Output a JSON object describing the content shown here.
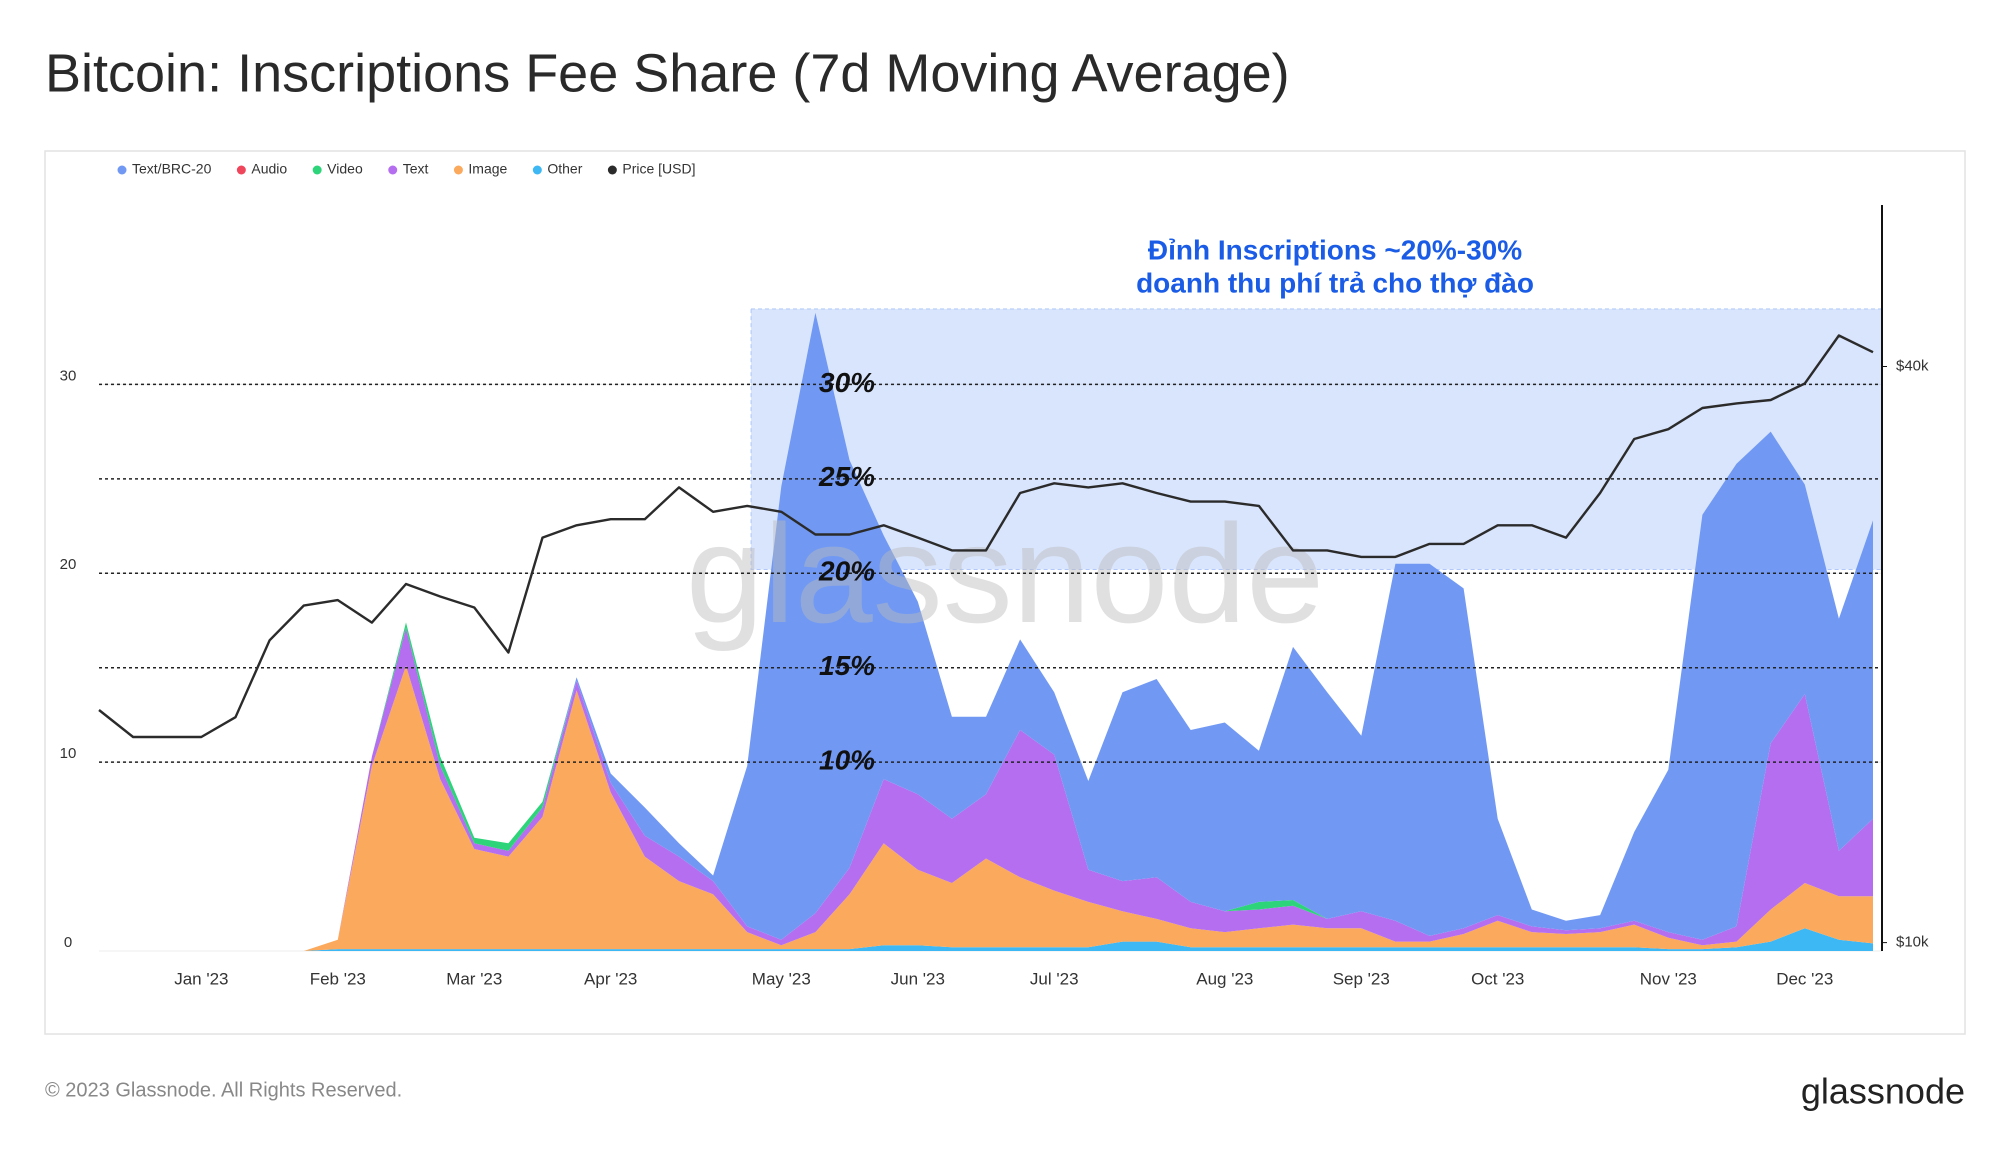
{
  "chart_data": {
    "type": "stacked_area",
    "title": "Bitcoin: Inscriptions Fee Share (7d Moving Average)",
    "categories": [
      null,
      null,
      null,
      "Jan '23",
      null,
      null,
      null,
      "Feb '23",
      null,
      null,
      null,
      "Mar '23",
      null,
      null,
      null,
      "Apr '23",
      null,
      null,
      null,
      null,
      "May '23",
      null,
      null,
      null,
      "Jun '23",
      null,
      null,
      null,
      "Jul '23",
      null,
      null,
      null,
      null,
      "Aug '23",
      null,
      null,
      null,
      "Sep '23",
      null,
      null,
      null,
      "Oct '23",
      null,
      null,
      null,
      null,
      "Nov '23",
      null,
      null,
      null,
      "Dec '23",
      null,
      null
    ],
    "series": [
      {
        "name": "Text/BRC-20",
        "color": "#7199f3",
        "values": [
          0,
          0,
          0,
          0,
          0,
          0,
          0,
          0,
          0,
          0,
          0,
          0,
          0,
          0,
          0.2,
          0.5,
          1.5,
          0.7,
          0.3,
          8.5,
          24,
          31.8,
          21.6,
          12.9,
          10.2,
          5.4,
          4.1,
          4.8,
          3.3,
          4.7,
          10,
          10.5,
          9.1,
          10,
          8,
          13.4,
          12,
          9.3,
          18.9,
          19.7,
          18,
          5.1,
          0.9,
          0.5,
          0.7,
          4.7,
          8.6,
          22.5,
          24.5,
          16.5,
          11.1,
          12.3,
          15.8
        ]
      },
      {
        "name": "Audio",
        "color": "#f0465c",
        "values": [
          0,
          0,
          0,
          0,
          0,
          0,
          0,
          0,
          0,
          0,
          0,
          0,
          0,
          0,
          0,
          0,
          0,
          0,
          0,
          0,
          0,
          0,
          0,
          0,
          0,
          0,
          0,
          0,
          0,
          0,
          0,
          0,
          0,
          0,
          0,
          0,
          0,
          0,
          0,
          0,
          0,
          0,
          0,
          0,
          0,
          0,
          0,
          0,
          0,
          0,
          0,
          0,
          0
        ]
      },
      {
        "name": "Video",
        "color": "#2ed47a",
        "values": [
          0,
          0,
          0,
          0,
          0,
          0,
          0,
          0,
          0,
          0.3,
          0.5,
          0.3,
          0.4,
          0.3,
          0,
          0,
          0,
          0,
          0,
          0,
          0,
          0,
          0,
          0,
          0,
          0,
          0,
          0,
          0,
          0,
          0,
          0,
          0,
          0,
          0.4,
          0.3,
          0,
          0,
          0,
          0,
          0,
          0,
          0,
          0,
          0,
          0,
          0,
          0,
          0,
          0,
          0,
          0,
          0
        ]
      },
      {
        "name": "Text",
        "color": "#b56ef0",
        "values": [
          0,
          0,
          0,
          0,
          0,
          0,
          0,
          0,
          0.5,
          2,
          0.7,
          0.3,
          0.3,
          0.5,
          0.5,
          0.5,
          1.1,
          1.3,
          0.7,
          0.3,
          0.3,
          1.0,
          1.4,
          3.4,
          4,
          3.4,
          3.4,
          7.8,
          7.2,
          1.7,
          1.6,
          2.2,
          1.4,
          1.1,
          1.0,
          1.0,
          0.5,
          0.9,
          1.1,
          0.3,
          0.3,
          0.3,
          0.3,
          0.2,
          0.2,
          0.2,
          0.3,
          0.3,
          0.8,
          8.8,
          10,
          2.4,
          4.1
        ]
      },
      {
        "name": "Image",
        "color": "#fba95c",
        "values": [
          0,
          0,
          0,
          0,
          0,
          0,
          0,
          0.5,
          9.7,
          15,
          9,
          5.3,
          4.9,
          7,
          13.7,
          8.3,
          4.9,
          3.6,
          2.9,
          0.9,
          0.2,
          0.9,
          2.9,
          5.4,
          4.0,
          3.4,
          4.7,
          3.7,
          3.0,
          2.4,
          1.6,
          1.2,
          1.0,
          0.8,
          1.0,
          1.2,
          1.0,
          1.0,
          0.3,
          0.3,
          0.7,
          1.4,
          0.8,
          0.7,
          0.8,
          1.2,
          0.6,
          0.2,
          0.3,
          1.7,
          2.4,
          2.3,
          2.5
        ]
      },
      {
        "name": "Other",
        "color": "#3db8f5",
        "values": [
          0,
          0,
          0,
          0,
          0,
          0,
          0,
          0.1,
          0.1,
          0.1,
          0.1,
          0.1,
          0.1,
          0.1,
          0.1,
          0.1,
          0.1,
          0.1,
          0.1,
          0.1,
          0.1,
          0.1,
          0.1,
          0.3,
          0.3,
          0.2,
          0.2,
          0.2,
          0.2,
          0.2,
          0.5,
          0.5,
          0.2,
          0.2,
          0.2,
          0.2,
          0.2,
          0.2,
          0.2,
          0.2,
          0.2,
          0.2,
          0.2,
          0.2,
          0.2,
          0.2,
          0.1,
          0.1,
          0.2,
          0.5,
          1.2,
          0.6,
          0.4
        ]
      },
      {
        "name": "Price [USD]",
        "color": "#2b2b2b",
        "axis": "y2",
        "values": [
          17500,
          16400,
          16400,
          16400,
          17200,
          20700,
          22500,
          22800,
          21600,
          23700,
          23000,
          22400,
          20100,
          26500,
          27300,
          27700,
          27700,
          29900,
          28200,
          28600,
          28200,
          26700,
          26700,
          27300,
          26500,
          25700,
          25700,
          29500,
          30200,
          29900,
          30200,
          29500,
          28900,
          28900,
          28600,
          25700,
          25700,
          25300,
          25300,
          26100,
          26100,
          27300,
          27300,
          26500,
          29500,
          33600,
          34400,
          36200,
          36600,
          36900,
          38400,
          43100,
          41400
        ]
      }
    ],
    "ylim": [
      0,
      39.5
    ],
    "yticks": [
      0,
      10,
      20,
      30
    ],
    "y2lim": [
      9800,
      59000
    ],
    "y2scale": "log",
    "y2ticks": [
      {
        "value": 10000,
        "label": "$10k"
      },
      {
        "value": 40000,
        "label": "$40k"
      }
    ],
    "grid": true,
    "legend": "top-left",
    "reference_lines": [
      {
        "value": 30,
        "label": "30%"
      },
      {
        "value": 25,
        "label": "25%"
      },
      {
        "value": 20,
        "label": "20%"
      },
      {
        "value": 15,
        "label": "15%"
      },
      {
        "value": 10,
        "label": "10%"
      }
    ],
    "highlight": {
      "ylim": [
        20.2,
        34
      ]
    },
    "annotation": [
      "Đỉnh Inscriptions ~20%-30%",
      "doanh thu phí trả cho thợ đào"
    ],
    "watermark": "glassnode",
    "footer": "© 2023 Glassnode. All Rights Reserved.",
    "logo": "glassnode"
  }
}
